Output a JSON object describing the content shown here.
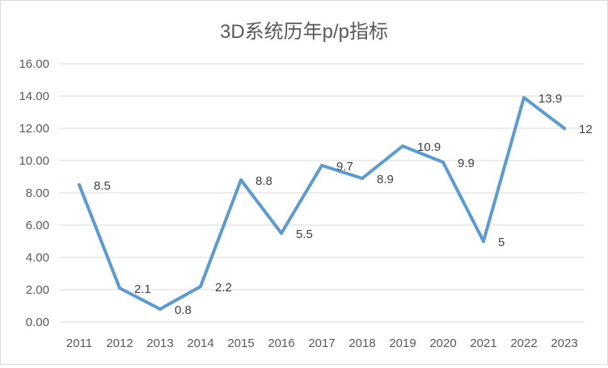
{
  "chart_data": {
    "type": "line",
    "title": "3D系统历年p/p指标",
    "xlabel": "",
    "ylabel": "",
    "categories": [
      "2011",
      "2012",
      "2013",
      "2014",
      "2015",
      "2016",
      "2017",
      "2018",
      "2019",
      "2020",
      "2021",
      "2022",
      "2023"
    ],
    "series": [
      {
        "values": [
          8.5,
          2.1,
          0.8,
          2.2,
          8.8,
          5.5,
          9.7,
          8.9,
          10.9,
          9.9,
          5,
          13.9,
          12
        ],
        "color": "#5b9bd5"
      }
    ],
    "data_labels": [
      "8.5",
      "2.1",
      "0.8",
      "2.2",
      "8.8",
      "5.5",
      "9.7",
      "8.9",
      "10.9",
      "9.9",
      "5",
      "13.9",
      "12"
    ],
    "ylim": [
      0,
      16
    ],
    "yticks": [
      "0.00",
      "2.00",
      "4.00",
      "6.00",
      "8.00",
      "10.00",
      "12.00",
      "14.00",
      "16.00"
    ],
    "grid": true,
    "legend": "none"
  }
}
